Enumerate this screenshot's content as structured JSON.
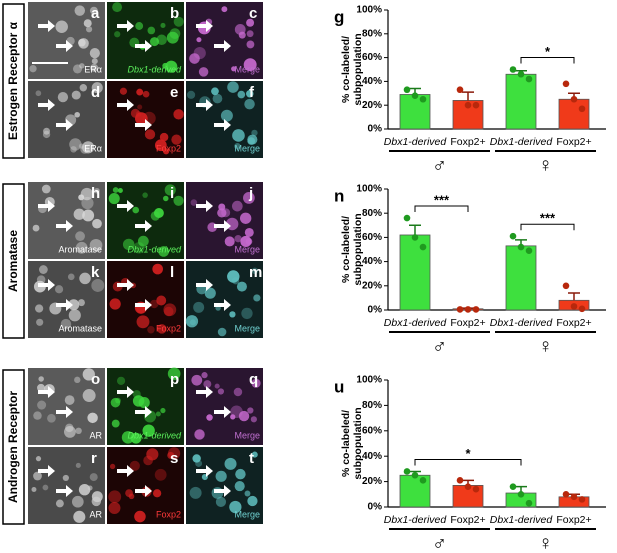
{
  "image_panels": [
    {
      "row_label": "Estrogen Receptor α",
      "panels": [
        {
          "letter": "a",
          "caption": "ERα"
        },
        {
          "letter": "b",
          "caption": "Dbx1-derived"
        },
        {
          "letter": "c",
          "caption": "Merge"
        },
        {
          "letter": "d",
          "caption": "ERα"
        },
        {
          "letter": "e",
          "caption": "Foxp2"
        },
        {
          "letter": "f",
          "caption": "Merge"
        }
      ]
    },
    {
      "row_label": "Aromatase",
      "panels": [
        {
          "letter": "h",
          "caption": "Aromatase"
        },
        {
          "letter": "i",
          "caption": "Dbx1-derived"
        },
        {
          "letter": "j",
          "caption": "Merge"
        },
        {
          "letter": "k",
          "caption": "Aromatase"
        },
        {
          "letter": "l",
          "caption": "Foxp2"
        },
        {
          "letter": "m",
          "caption": "Merge"
        }
      ]
    },
    {
      "row_label": "Androgen Receptor",
      "panels": [
        {
          "letter": "o",
          "caption": "AR"
        },
        {
          "letter": "p",
          "caption": "Dbx1-derived"
        },
        {
          "letter": "q",
          "caption": "Merge"
        },
        {
          "letter": "r",
          "caption": "AR"
        },
        {
          "letter": "s",
          "caption": "Foxp2"
        },
        {
          "letter": "t",
          "caption": "Merge"
        }
      ]
    }
  ],
  "chart_data": [
    {
      "type": "bar",
      "panel_letter": "g",
      "ylabel": [
        "% co-labeled/",
        "subpopulation"
      ],
      "categories": [
        "Dbx1-derived",
        "Foxp2+",
        "Dbx1-derived",
        "Foxp2+"
      ],
      "groups": [
        "♂",
        "♀"
      ],
      "colors": [
        "#3ee03e",
        "#f03a1a",
        "#3ee03e",
        "#f03a1a"
      ],
      "values": [
        29,
        24,
        46,
        25
      ],
      "errors": [
        5,
        7,
        3,
        5
      ],
      "points": [
        [
          33,
          28,
          25
        ],
        [
          33,
          20,
          20
        ],
        [
          50,
          46,
          42
        ],
        [
          38,
          25,
          17
        ]
      ],
      "annotations": [
        {
          "between": [
            2,
            3
          ],
          "text": "*"
        }
      ],
      "ylim": [
        0,
        100
      ],
      "yticks": [
        {
          "value": 0,
          "label": "0%"
        },
        {
          "value": 20,
          "label": "20%"
        },
        {
          "value": 40,
          "label": "40%"
        },
        {
          "value": 60,
          "label": "60%"
        },
        {
          "value": 80,
          "label": "80%"
        },
        {
          "value": 100,
          "label": "100%"
        }
      ]
    },
    {
      "type": "bar",
      "panel_letter": "n",
      "ylabel": [
        "% co-labeled/",
        "subpopulation"
      ],
      "categories": [
        "Dbx1-derived",
        "Foxp2+",
        "Dbx1-derived",
        "Foxp2+"
      ],
      "groups": [
        "♂",
        "♀"
      ],
      "colors": [
        "#3ee03e",
        "#f03a1a",
        "#3ee03e",
        "#f03a1a"
      ],
      "values": [
        62,
        1,
        53,
        8
      ],
      "errors": [
        8,
        0.5,
        5,
        6
      ],
      "points": [
        [
          76,
          60,
          52
        ],
        [
          0.5,
          0.5,
          0.5
        ],
        [
          61,
          52,
          49
        ],
        [
          20,
          3,
          1
        ]
      ],
      "annotations": [
        {
          "between": [
            0,
            1
          ],
          "text": "***"
        },
        {
          "between": [
            2,
            3
          ],
          "text": "***"
        }
      ],
      "ylim": [
        0,
        100
      ],
      "yticks": [
        {
          "value": 0,
          "label": "0%"
        },
        {
          "value": 20,
          "label": "20%"
        },
        {
          "value": 40,
          "label": "40%"
        },
        {
          "value": 60,
          "label": "60%"
        },
        {
          "value": 80,
          "label": "80%"
        },
        {
          "value": 100,
          "label": "100%"
        }
      ]
    },
    {
      "type": "bar",
      "panel_letter": "u",
      "ylabel": [
        "% co-labeled/",
        "subpopulation"
      ],
      "categories": [
        "Dbx1-derived",
        "Foxp2+",
        "Dbx1-derived",
        "Foxp2+"
      ],
      "groups": [
        "♂",
        "♀"
      ],
      "colors": [
        "#3ee03e",
        "#f03a1a",
        "#3ee03e",
        "#f03a1a"
      ],
      "values": [
        25,
        17,
        11,
        8
      ],
      "errors": [
        3,
        4,
        5,
        2
      ],
      "points": [
        [
          28,
          25,
          21
        ],
        [
          21,
          16,
          14
        ],
        [
          16,
          10,
          3
        ],
        [
          10,
          8,
          6
        ]
      ],
      "annotations": [
        {
          "between": [
            0,
            2
          ],
          "text": "*"
        }
      ],
      "ylim": [
        0,
        100
      ],
      "yticks": [
        {
          "value": 0,
          "label": "0%"
        },
        {
          "value": 20,
          "label": "20%"
        },
        {
          "value": 40,
          "label": "40%"
        },
        {
          "value": 60,
          "label": "60%"
        },
        {
          "value": 80,
          "label": "80%"
        },
        {
          "value": 100,
          "label": "100%"
        }
      ]
    }
  ]
}
